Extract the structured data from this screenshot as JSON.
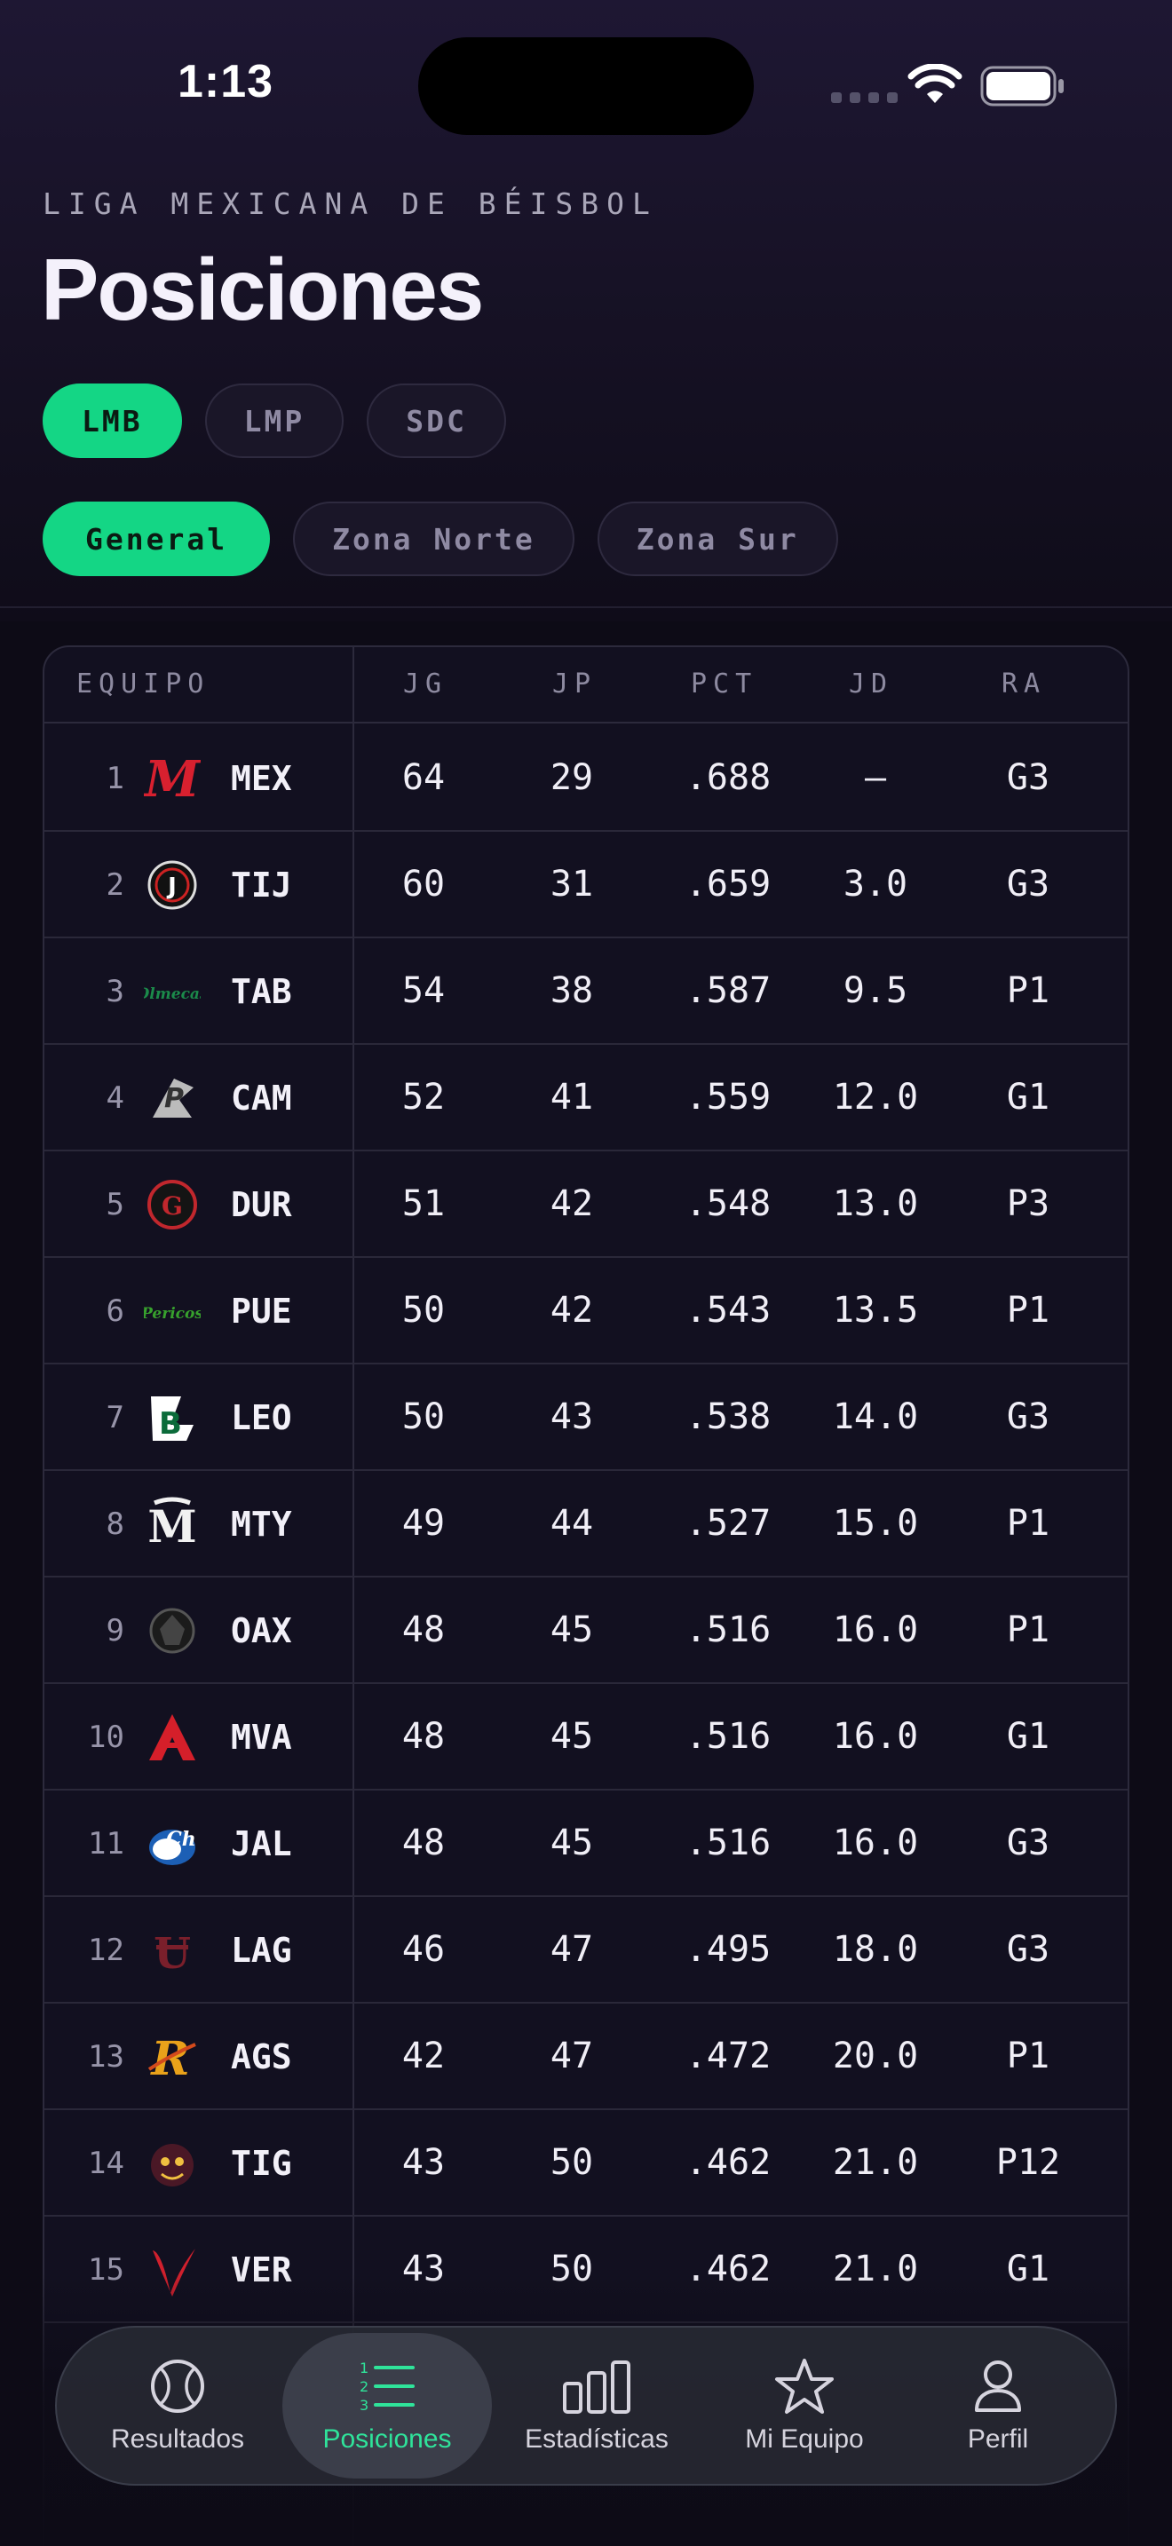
{
  "status": {
    "time": "1:13"
  },
  "header": {
    "kicker": "LIGA MEXICANA DE BÉISBOL",
    "title": "Posiciones"
  },
  "leagues": [
    {
      "label": "LMB",
      "active": true
    },
    {
      "label": "LMP",
      "active": false
    },
    {
      "label": "SDC",
      "active": false
    }
  ],
  "zones": [
    {
      "label": "General",
      "active": true
    },
    {
      "label": "Zona Norte",
      "active": false
    },
    {
      "label": "Zona Sur",
      "active": false
    }
  ],
  "table": {
    "columns": [
      "EQUIPO",
      "JG",
      "JP",
      "PCT",
      "JD",
      "RA"
    ],
    "rows": [
      {
        "rank": "1",
        "team": "MEX",
        "logo": "diablos-logo",
        "jg": "64",
        "jp": "29",
        "pct": ".688",
        "jd": "—",
        "ra": "G3"
      },
      {
        "rank": "2",
        "team": "TIJ",
        "logo": "toros-logo",
        "jg": "60",
        "jp": "31",
        "pct": ".659",
        "jd": "3.0",
        "ra": "G3"
      },
      {
        "rank": "3",
        "team": "TAB",
        "logo": "olmecas-logo",
        "jg": "54",
        "jp": "38",
        "pct": ".587",
        "jd": "9.5",
        "ra": "P1"
      },
      {
        "rank": "4",
        "team": "CAM",
        "logo": "piratas-logo",
        "jg": "52",
        "jp": "41",
        "pct": ".559",
        "jd": "12.0",
        "ra": "G1"
      },
      {
        "rank": "5",
        "team": "DUR",
        "logo": "caliente-logo",
        "jg": "51",
        "jp": "42",
        "pct": ".548",
        "jd": "13.0",
        "ra": "P3"
      },
      {
        "rank": "6",
        "team": "PUE",
        "logo": "pericos-logo",
        "jg": "50",
        "jp": "42",
        "pct": ".543",
        "jd": "13.5",
        "ra": "P1"
      },
      {
        "rank": "7",
        "team": "LEO",
        "logo": "bravos-logo",
        "jg": "50",
        "jp": "43",
        "pct": ".538",
        "jd": "14.0",
        "ra": "G3"
      },
      {
        "rank": "8",
        "team": "MTY",
        "logo": "sultanes-logo",
        "jg": "49",
        "jp": "44",
        "pct": ".527",
        "jd": "15.0",
        "ra": "P1"
      },
      {
        "rank": "9",
        "team": "OAX",
        "logo": "guerreros-logo",
        "jg": "48",
        "jp": "45",
        "pct": ".516",
        "jd": "16.0",
        "ra": "P1"
      },
      {
        "rank": "10",
        "team": "MVA",
        "logo": "acereros-logo",
        "jg": "48",
        "jp": "45",
        "pct": ".516",
        "jd": "16.0",
        "ra": "G1"
      },
      {
        "rank": "11",
        "team": "JAL",
        "logo": "charros-logo",
        "jg": "48",
        "jp": "45",
        "pct": ".516",
        "jd": "16.0",
        "ra": "G3"
      },
      {
        "rank": "12",
        "team": "LAG",
        "logo": "algodoneros-logo",
        "jg": "46",
        "jp": "47",
        "pct": ".495",
        "jd": "18.0",
        "ra": "G3"
      },
      {
        "rank": "13",
        "team": "AGS",
        "logo": "rieleros-logo",
        "jg": "42",
        "jp": "47",
        "pct": ".472",
        "jd": "20.0",
        "ra": "P1"
      },
      {
        "rank": "14",
        "team": "TIG",
        "logo": "tigres-logo",
        "jg": "43",
        "jp": "50",
        "pct": ".462",
        "jd": "21.0",
        "ra": "P12"
      },
      {
        "rank": "15",
        "team": "VER",
        "logo": "aguila-logo",
        "jg": "43",
        "jp": "50",
        "pct": ".462",
        "jd": "21.0",
        "ra": "G1"
      }
    ]
  },
  "tabbar": [
    {
      "label": "Resultados",
      "icon": "baseball-icon",
      "active": false
    },
    {
      "label": "Posiciones",
      "icon": "ranked-list-icon",
      "active": true
    },
    {
      "label": "Estadísticas",
      "icon": "bar-chart-icon",
      "active": false
    },
    {
      "label": "Mi Equipo",
      "icon": "star-icon",
      "active": false
    },
    {
      "label": "Perfil",
      "icon": "person-icon",
      "active": false
    }
  ],
  "colors": {
    "accent": "#14d685",
    "background": "#0d0b16",
    "tab_active": "#2fe39a"
  }
}
